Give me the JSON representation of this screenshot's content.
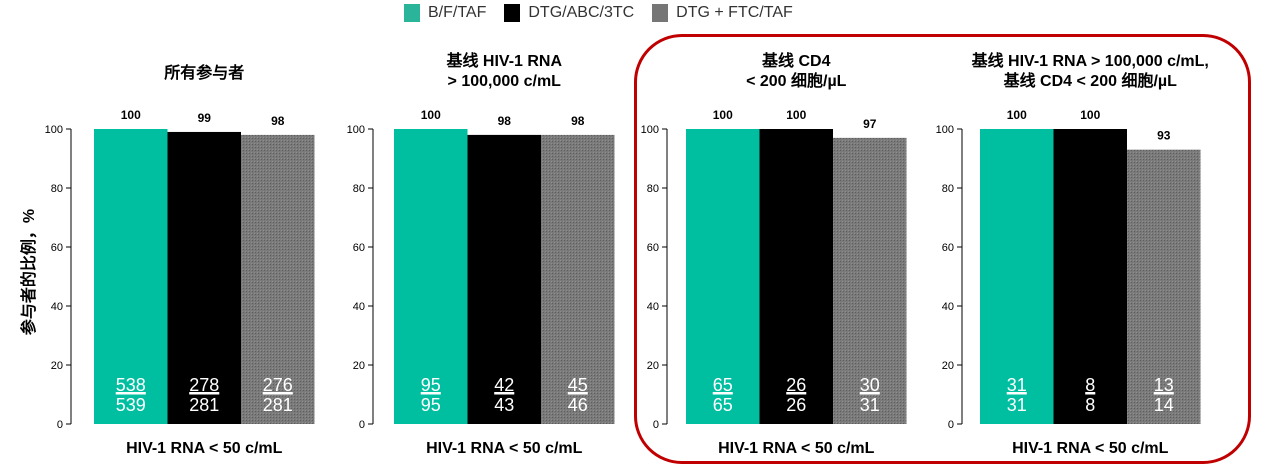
{
  "legend": [
    {
      "label": "B/F/TAF",
      "color": "#00bfa0"
    },
    {
      "label": "DTG/ABC/3TC",
      "color": "#000000"
    },
    {
      "label": "DTG + FTC/TAF",
      "color": "#767676"
    }
  ],
  "chart_data": {
    "type": "bar",
    "ylabel": "参与者的比例，%",
    "ylim": [
      0,
      100
    ],
    "yticks": [
      0,
      20,
      40,
      60,
      80,
      100
    ],
    "series_names": [
      "B/F/TAF",
      "DTG/ABC/3TC",
      "DTG + FTC/TAF"
    ],
    "panels": [
      {
        "title": [
          "所有参与者"
        ],
        "xlabel": "HIV-1 RNA < 50 c/mL",
        "values": [
          100,
          99,
          98
        ],
        "n": [
          [
            "538",
            "539"
          ],
          [
            "278",
            "281"
          ],
          [
            "276",
            "281"
          ]
        ],
        "highlighted": false
      },
      {
        "title": [
          "基线 HIV-1 RNA",
          "> 100,000 c/mL"
        ],
        "xlabel": "HIV-1 RNA < 50 c/mL",
        "values": [
          100,
          98,
          98
        ],
        "n": [
          [
            "95",
            "95"
          ],
          [
            "42",
            "43"
          ],
          [
            "45",
            "46"
          ]
        ],
        "highlighted": false
      },
      {
        "title": [
          "基线 CD4",
          "< 200 细胞/µL"
        ],
        "xlabel": "HIV-1 RNA < 50 c/mL",
        "values": [
          100,
          100,
          97
        ],
        "n": [
          [
            "65",
            "65"
          ],
          [
            "26",
            "26"
          ],
          [
            "30",
            "31"
          ]
        ],
        "highlighted": true
      },
      {
        "title": [
          "基线 HIV-1 RNA > 100,000 c/mL,",
          "基线 CD4 < 200 细胞/µL"
        ],
        "xlabel": "HIV-1 RNA < 50 c/mL",
        "values": [
          100,
          100,
          93
        ],
        "n": [
          [
            "31",
            "31"
          ],
          [
            "8",
            "8"
          ],
          [
            "13",
            "14"
          ]
        ],
        "highlighted": true
      }
    ]
  }
}
